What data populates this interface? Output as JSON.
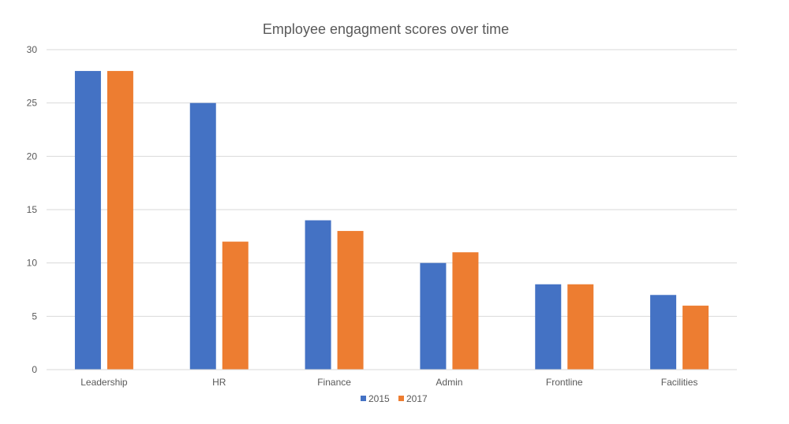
{
  "chart_data": {
    "type": "bar",
    "title": "Employee engagment scores over time",
    "categories": [
      "Leadership",
      "HR",
      "Finance",
      "Admin",
      "Frontline",
      "Facilities"
    ],
    "series": [
      {
        "name": "2015",
        "values": [
          28,
          25,
          14,
          10,
          8,
          7
        ],
        "color": "#4472C4"
      },
      {
        "name": "2017",
        "values": [
          28,
          12,
          13,
          11,
          8,
          6
        ],
        "color": "#ED7D31"
      }
    ],
    "yticks": [
      "0",
      "5",
      "10",
      "15",
      "20",
      "25",
      "30"
    ],
    "ylim": [
      0,
      30
    ],
    "grid": true,
    "gridColor": "#d9d9d9",
    "legend": "bottom"
  }
}
